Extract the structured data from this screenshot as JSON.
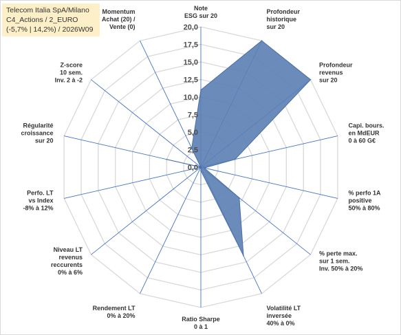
{
  "title_lines": [
    "Telecom Italia SpA/Milano",
    "C4_Actions / 2_EURO",
    "(-5,7% | 14,2%) / 2026W09"
  ],
  "chart_data": {
    "type": "radar",
    "title": "Telecom Italia SpA/Milano C4_Actions / 2_EURO (-5,7% | 14,2%) / 2026W09",
    "rlim": [
      0,
      20
    ],
    "ticks": [
      "0,0",
      "2,5",
      "5,0",
      "7,5",
      "10,0",
      "12,5",
      "15,0",
      "17,5",
      "20,0"
    ],
    "grid": true,
    "colors": {
      "fill": "#5b7fb4",
      "stroke": "#4a6fa5",
      "spokes": "#4472c4",
      "rings": "#d9d9d9"
    },
    "axes": [
      {
        "label": [
          "Note",
          "ESG sur 20"
        ]
      },
      {
        "label": [
          "Profondeur",
          "historique",
          "sur 20"
        ]
      },
      {
        "label": [
          "Profondeur",
          "revenus",
          "sur 20"
        ]
      },
      {
        "label": [
          "Capi. bours.",
          "en MdEUR",
          "0 à 60 G€"
        ]
      },
      {
        "label": [
          "% perfo 1A",
          "positive",
          "50% à 80%"
        ]
      },
      {
        "label": [
          "% perte max.",
          "sur 1 sem.",
          "Inv. 50% à 20%"
        ]
      },
      {
        "label": [
          "Volatilité LT",
          "inversée",
          "40% à 0%"
        ]
      },
      {
        "label": [
          "Ratio Sharpe",
          "0 à 1"
        ]
      },
      {
        "label": [
          "Rendement LT",
          "0% à 20%"
        ]
      },
      {
        "label": [
          "Niveau LT",
          "revenus",
          "reccurents",
          "0% à 6%"
        ]
      },
      {
        "label": [
          "Perfo. LT",
          "vs Index",
          "-8% à 12%"
        ]
      },
      {
        "label": [
          "Régularité",
          "croissance",
          "sur 20"
        ]
      },
      {
        "label": [
          "Z-score",
          "10 sem.",
          "Inv. 2 à -2"
        ]
      },
      {
        "label": [
          "Momentum",
          "Achat (20) /",
          "Vente (0)"
        ]
      }
    ],
    "series": [
      {
        "values": [
          11,
          20,
          20,
          5,
          0.5,
          7,
          14,
          0.5,
          0,
          0,
          0,
          5,
          0,
          3
        ]
      }
    ]
  }
}
